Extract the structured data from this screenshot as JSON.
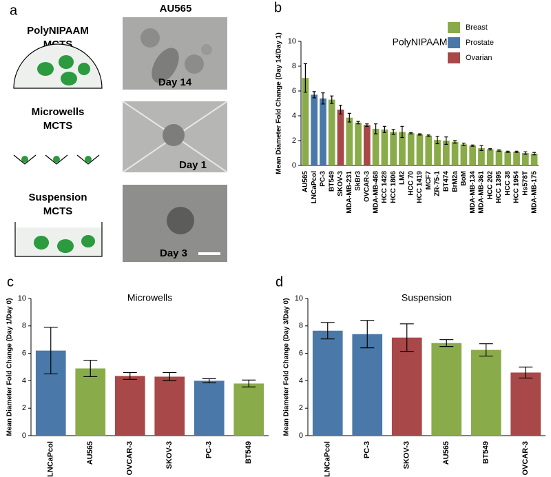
{
  "panel_a": {
    "label": "a",
    "title": "AU565",
    "title_color": "#8aab3c",
    "rows": [
      {
        "lines": [
          "PolyNIPAAM",
          "MCTS"
        ],
        "day": "Day 14"
      },
      {
        "lines": [
          "Microwells",
          "MCTS"
        ],
        "day": "Day 1"
      },
      {
        "lines": [
          "Suspension",
          "MCTS"
        ],
        "day": "Day 3"
      }
    ]
  },
  "chart_data": [
    {
      "type": "bar",
      "panel": "b",
      "subtitle": "PolyNIPAAM",
      "y_label": "Mean Diameter Fold Change (Day 14/Day 1)",
      "categories": [
        "AU565",
        "LNCaPcol",
        "PC-3",
        "BT549",
        "SKOV-3",
        "MDA-MB-231",
        "SkBr3",
        "OVCAR-3",
        "MDA-MB-468",
        "HCC 1428",
        "HCC 1806",
        "LM2",
        "HCC 70",
        "HCC 1419",
        "MCF7",
        "ZR-75-1",
        "BT474",
        "BrM2a",
        "BoM",
        "MDA-MB-134",
        "MDA-MB-361",
        "HCC 202",
        "HCC 1395",
        "HCC 38",
        "HCC 1954",
        "Hs578T",
        "MDA-MB-175"
      ],
      "values": [
        7.05,
        5.7,
        5.4,
        5.3,
        4.5,
        3.85,
        3.45,
        3.25,
        2.95,
        2.9,
        2.7,
        2.7,
        2.6,
        2.5,
        2.4,
        2.05,
        2.0,
        1.9,
        1.7,
        1.6,
        1.4,
        1.3,
        1.2,
        1.1,
        1.1,
        1.0,
        0.95
      ],
      "errors": [
        1.15,
        0.25,
        0.45,
        0.3,
        0.35,
        0.35,
        0.1,
        0.1,
        0.4,
        0.25,
        0.2,
        0.45,
        0.05,
        0.05,
        0.05,
        0.3,
        0.3,
        0.1,
        0.1,
        0.05,
        0.2,
        0.05,
        0.05,
        0.05,
        0.05,
        0.1,
        0.1
      ],
      "bar_colors": [
        "#8aab4a",
        "#4a78a8",
        "#4a78a8",
        "#8aab4a",
        "#a84848",
        "#8aab4a",
        "#8aab4a",
        "#a84848",
        "#8aab4a",
        "#8aab4a",
        "#8aab4a",
        "#8aab4a",
        "#8aab4a",
        "#8aab4a",
        "#8aab4a",
        "#8aab4a",
        "#8aab4a",
        "#8aab4a",
        "#8aab4a",
        "#8aab4a",
        "#8aab4a",
        "#8aab4a",
        "#8aab4a",
        "#8aab4a",
        "#8aab4a",
        "#8aab4a",
        "#8aab4a"
      ],
      "highlight_color": "#e02424",
      "legend": [
        {
          "name": "Breast",
          "color": "#8aab4a"
        },
        {
          "name": "Prostate",
          "color": "#4a78a8"
        },
        {
          "name": "Ovarian",
          "color": "#a84848"
        }
      ],
      "ylim": [
        0,
        10
      ],
      "yticks": [
        0,
        2,
        4,
        6,
        8,
        10
      ]
    },
    {
      "type": "bar",
      "panel": "c",
      "subtitle": "Microwells",
      "y_label": "Mean Diameter Fold Change (Day 1/Day 0)",
      "categories": [
        "LNCaPcol",
        "AU565",
        "OVCAR-3",
        "SKOV-3",
        "PC-3",
        "BT549"
      ],
      "values": [
        6.2,
        4.9,
        4.35,
        4.3,
        4.0,
        3.8
      ],
      "errors": [
        1.7,
        0.6,
        0.25,
        0.3,
        0.15,
        0.25
      ],
      "bar_colors": [
        "#4a78a8",
        "#8aab4a",
        "#a84848",
        "#a84848",
        "#4a78a8",
        "#8aab4a"
      ],
      "ylim": [
        0,
        10
      ],
      "yticks": [
        0,
        2,
        4,
        6,
        8,
        10
      ]
    },
    {
      "type": "bar",
      "panel": "d",
      "subtitle": "Suspension",
      "y_label": "Mean Diameter Fold Change (Day 3/Day 0)",
      "categories": [
        "LNCaPcol",
        "PC-3",
        "SKOV-3",
        "AU565",
        "BT549",
        "OVCAR-3"
      ],
      "values": [
        7.65,
        7.4,
        7.15,
        6.75,
        6.25,
        4.6
      ],
      "errors": [
        0.6,
        1.0,
        1.0,
        0.25,
        0.45,
        0.4
      ],
      "bar_colors": [
        "#4a78a8",
        "#4a78a8",
        "#a84848",
        "#8aab4a",
        "#8aab4a",
        "#a84848"
      ],
      "ylim": [
        0,
        10
      ],
      "yticks": [
        0,
        2,
        4,
        6,
        8,
        10
      ]
    }
  ]
}
